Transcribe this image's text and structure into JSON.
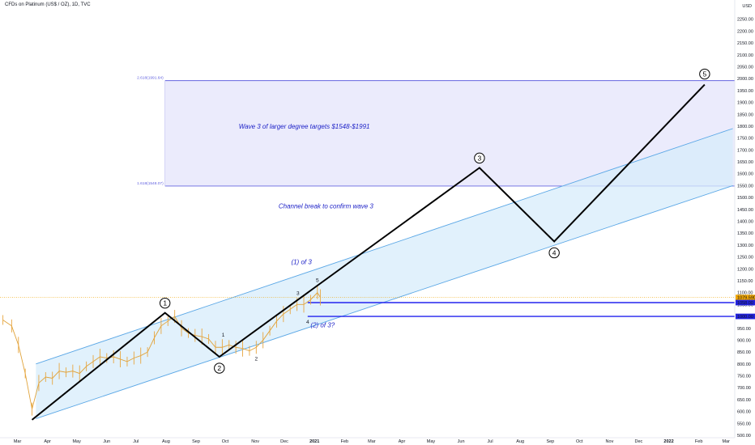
{
  "header": {
    "title": "CFDs on Platinum (US$ / OZ), 1D, TVC",
    "currency": "USD"
  },
  "colors": {
    "impulse_line": "#000000",
    "channel_stroke": "#5aa7e6",
    "channel_fill": "#d7ecfb",
    "target_box_fill": "#ebebfc",
    "target_box_stroke": "#6464e0",
    "annotation_text": "#1e22c7",
    "price_line": "#f0a500",
    "level_line": "#2222ee",
    "price_badge": "#f0a500",
    "level_badge": "#2222dd"
  },
  "chart_data": {
    "type": "line",
    "title": "CFDs on Platinum (US$ / OZ), 1D, TVC",
    "xlabel": "",
    "ylabel": "USD",
    "ylim": [
      480,
      2320
    ],
    "grid": false,
    "x_ticks": [
      "Mar",
      "Apr",
      "May",
      "Jun",
      "Jul",
      "Aug",
      "Sep",
      "Oct",
      "Nov",
      "Dec",
      "2021",
      "Feb",
      "Mar",
      "Apr",
      "May",
      "Jun",
      "Jul",
      "Aug",
      "Sep",
      "Oct",
      "Nov",
      "Dec",
      "2022",
      "Feb",
      "Mar"
    ],
    "y_ticks": [
      500,
      550,
      600,
      650,
      700,
      750,
      800,
      850,
      900,
      950,
      1000,
      1050,
      1100,
      1150,
      1200,
      1250,
      1300,
      1350,
      1400,
      1450,
      1500,
      1550,
      1600,
      1650,
      1700,
      1750,
      1800,
      1850,
      1900,
      1950,
      2000,
      2050,
      2100,
      2150,
      2200,
      2250,
      2300
    ],
    "wave_path": [
      {
        "label": "",
        "x": "2020-03-16",
        "y": 565
      },
      {
        "label": "1",
        "x": "2020-07-31",
        "y": 1015
      },
      {
        "label": "2",
        "x": "2020-09-25",
        "y": 830
      },
      {
        "label": "3",
        "x": "2021-06-20",
        "y": 1625
      },
      {
        "label": "4",
        "x": "2021-09-05",
        "y": 1315
      },
      {
        "label": "5",
        "x": "2022-02-07",
        "y": 1975
      }
    ],
    "minor_labels": [
      {
        "label": "1",
        "x": "2020-09-29",
        "y": 915
      },
      {
        "label": "2",
        "x": "2020-11-02",
        "y": 815
      },
      {
        "label": "3",
        "x": "2020-12-15",
        "y": 1090
      },
      {
        "label": "4",
        "x": "2020-12-25",
        "y": 970
      },
      {
        "label": "5",
        "x": "2021-01-04",
        "y": 1145
      }
    ],
    "price_series": {
      "name": "",
      "x": [
        "2020-02-15",
        "2020-02-24",
        "2020-03-02",
        "2020-03-09",
        "2020-03-16",
        "2020-03-23",
        "2020-03-30",
        "2020-04-06",
        "2020-04-13",
        "2020-04-20",
        "2020-04-27",
        "2020-05-04",
        "2020-05-11",
        "2020-05-18",
        "2020-05-25",
        "2020-06-01",
        "2020-06-08",
        "2020-06-15",
        "2020-06-22",
        "2020-06-29",
        "2020-07-06",
        "2020-07-13",
        "2020-07-20",
        "2020-07-27",
        "2020-08-03",
        "2020-08-10",
        "2020-08-17",
        "2020-08-24",
        "2020-08-31",
        "2020-09-07",
        "2020-09-14",
        "2020-09-21",
        "2020-09-28",
        "2020-10-05",
        "2020-10-12",
        "2020-10-19",
        "2020-10-26",
        "2020-11-02",
        "2020-11-09",
        "2020-11-16",
        "2020-11-23",
        "2020-11-30",
        "2020-12-07",
        "2020-12-14",
        "2020-12-21",
        "2020-12-28",
        "2021-01-04",
        "2021-01-07"
      ],
      "y": [
        985,
        960,
        880,
        760,
        610,
        720,
        745,
        740,
        770,
        765,
        770,
        760,
        790,
        810,
        830,
        825,
        830,
        820,
        810,
        825,
        835,
        850,
        910,
        960,
        980,
        1000,
        950,
        930,
        920,
        915,
        905,
        870,
        870,
        880,
        870,
        865,
        855,
        870,
        900,
        940,
        980,
        1010,
        1030,
        1050,
        1050,
        1070,
        1100,
        1080
      ]
    },
    "channel": {
      "upper": [
        {
          "x": "2020-03-20",
          "y": 800
        },
        {
          "x": "2022-03-08",
          "y": 1790
        }
      ],
      "lower": [
        {
          "x": "2020-03-20",
          "y": 570
        },
        {
          "x": "2022-03-08",
          "y": 1550
        }
      ]
    },
    "fib_levels": [
      {
        "label": "2.618(1991.64)",
        "value": 1991.64
      },
      {
        "label": "1.618(1548.07)",
        "value": 1548.07
      }
    ],
    "target_box": {
      "x0": "2020-07-31",
      "x1": "2022-03-08",
      "y0": 1548.07,
      "y1": 1991.64
    },
    "horizontal_levels": [
      {
        "label": "1058.00",
        "value": 1058
      },
      {
        "label": "1000.00",
        "value": 1000
      }
    ],
    "current_price": {
      "label": "1079.590",
      "value": 1079.59
    },
    "annotations": [
      {
        "text": "Wave 3 of larger degree targets $1548-$1991",
        "x": "2020-10-15",
        "y": 1790
      },
      {
        "text": "Channel break to confirm wave 3",
        "x": "2020-11-25",
        "y": 1455
      },
      {
        "text": "(1) of 3",
        "x": "2020-12-08",
        "y": 1220
      },
      {
        "text": "(2) of 3?",
        "x": "2020-12-28",
        "y": 955
      }
    ]
  }
}
